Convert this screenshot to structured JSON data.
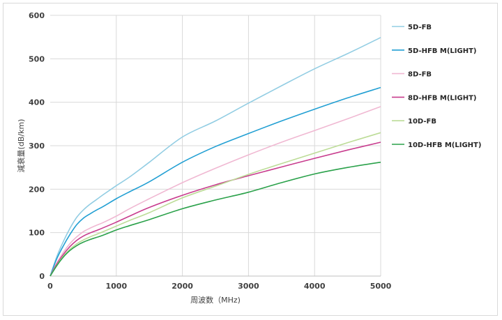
{
  "chart_data": {
    "type": "line",
    "title": "",
    "xlabel": "周波数（MHz)",
    "ylabel": "減衰量(dB/km)",
    "xlim": [
      0,
      5000
    ],
    "ylim": [
      0,
      600
    ],
    "x_ticks": [
      0,
      1000,
      2000,
      3000,
      4000,
      5000
    ],
    "y_ticks": [
      0,
      100,
      200,
      300,
      400,
      500,
      600
    ],
    "x_tick_labels": [
      "0",
      "1000",
      "2000",
      "3000",
      "4000",
      "5000"
    ],
    "y_tick_labels": [
      "0",
      "100",
      "200",
      "300",
      "400",
      "500",
      "600"
    ],
    "grid": true,
    "legend_position": "right",
    "series": [
      {
        "name": "5D-FB",
        "color": "#92cde3",
        "x": [
          0,
          100,
          200,
          300,
          400,
          500,
          600,
          700,
          800,
          1000,
          1200,
          1500,
          2000,
          2500,
          3000,
          3500,
          4000,
          4500,
          5000
        ],
        "y": [
          0,
          45,
          80,
          110,
          135,
          152,
          165,
          176,
          187,
          208,
          228,
          262,
          320,
          357,
          398,
          438,
          477,
          512,
          549
        ]
      },
      {
        "name": "5D-HFB M(LIGHT)",
        "color": "#219fd3",
        "x": [
          0,
          100,
          200,
          300,
          400,
          500,
          600,
          700,
          800,
          1000,
          1200,
          1500,
          2000,
          2500,
          3000,
          3500,
          4000,
          4500,
          5000
        ],
        "y": [
          0,
          40,
          70,
          96,
          118,
          133,
          143,
          152,
          160,
          178,
          194,
          217,
          262,
          298,
          328,
          357,
          384,
          410,
          434
        ]
      },
      {
        "name": "8D-FB",
        "color": "#f0b8d2",
        "x": [
          0,
          100,
          200,
          300,
          400,
          500,
          600,
          700,
          800,
          1000,
          1200,
          1500,
          2000,
          2500,
          3000,
          3500,
          4000,
          4500,
          5000
        ],
        "y": [
          0,
          30,
          55,
          75,
          90,
          102,
          110,
          117,
          123,
          138,
          155,
          178,
          215,
          248,
          279,
          308,
          335,
          362,
          390
        ]
      },
      {
        "name": "8D-HFB M(LIGHT)",
        "color": "#c83c8e",
        "x": [
          0,
          100,
          200,
          300,
          400,
          500,
          600,
          700,
          800,
          1000,
          1200,
          1500,
          2000,
          2500,
          3000,
          3500,
          4000,
          4500,
          5000
        ],
        "y": [
          0,
          28,
          50,
          68,
          82,
          92,
          99,
          105,
          111,
          124,
          138,
          158,
          186,
          210,
          231,
          251,
          271,
          290,
          308
        ]
      },
      {
        "name": "10D-FB",
        "color": "#bcdc97",
        "x": [
          0,
          100,
          200,
          300,
          400,
          500,
          600,
          700,
          800,
          1000,
          1200,
          1500,
          2000,
          2500,
          3000,
          3500,
          4000,
          4500,
          5000
        ],
        "y": [
          0,
          25,
          46,
          62,
          74,
          83,
          90,
          96,
          102,
          115,
          128,
          146,
          180,
          207,
          234,
          259,
          283,
          307,
          330
        ]
      },
      {
        "name": "10D-HFB M(LIGHT)",
        "color": "#2aa14a",
        "x": [
          0,
          100,
          200,
          300,
          400,
          500,
          600,
          700,
          800,
          1000,
          1200,
          1500,
          2000,
          2500,
          3000,
          3500,
          4000,
          4500,
          5000
        ],
        "y": [
          0,
          24,
          44,
          59,
          70,
          78,
          84,
          89,
          94,
          106,
          116,
          130,
          155,
          175,
          193,
          215,
          235,
          250,
          262
        ]
      }
    ]
  }
}
